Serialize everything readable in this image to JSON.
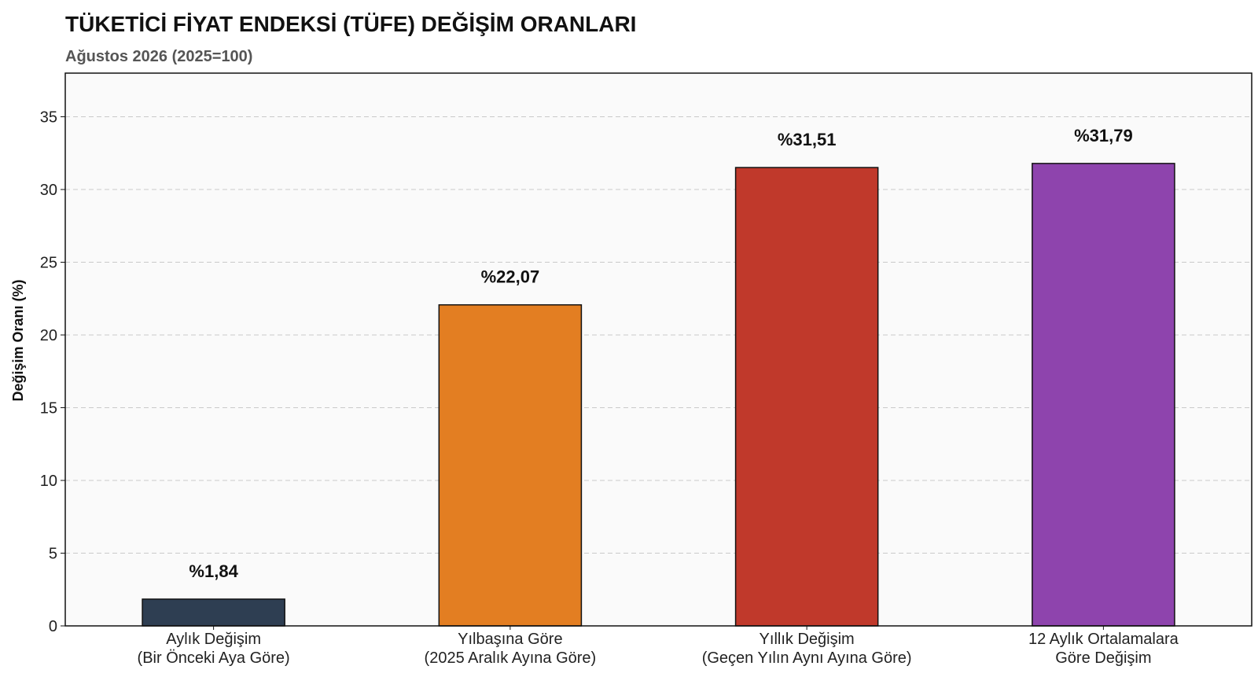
{
  "chart_data": {
    "type": "bar",
    "title": "TÜKETİCİ FİYAT ENDEKSİ (TÜFE) DEĞİŞİM ORANLARI",
    "subtitle": "Ağustos 2026 (2025=100)",
    "xlabel": "",
    "ylabel": "Değişim Oranı (%)",
    "ylim": [
      0,
      38
    ],
    "yticks": [
      0,
      5,
      10,
      15,
      20,
      25,
      30,
      35
    ],
    "grid": true,
    "categories": [
      [
        "Aylık Değişim",
        "(Bir Önceki Aya Göre)"
      ],
      [
        "Yılbaşına Göre",
        "(2025 Aralık Ayına Göre)"
      ],
      [
        "Yıllık Değişim",
        "(Geçen Yılın Aynı Ayına Göre)"
      ],
      [
        "12 Aylık Ortalamalara",
        "Göre Değişim"
      ]
    ],
    "values": [
      1.84,
      22.07,
      31.51,
      31.79
    ],
    "data_labels": [
      "%1,84",
      "%22,07",
      "%31,51",
      "%31,79"
    ],
    "colors": [
      "#2e3e52",
      "#e37e22",
      "#c0392b",
      "#8e44ad"
    ],
    "plot_background": "#fafafa"
  }
}
